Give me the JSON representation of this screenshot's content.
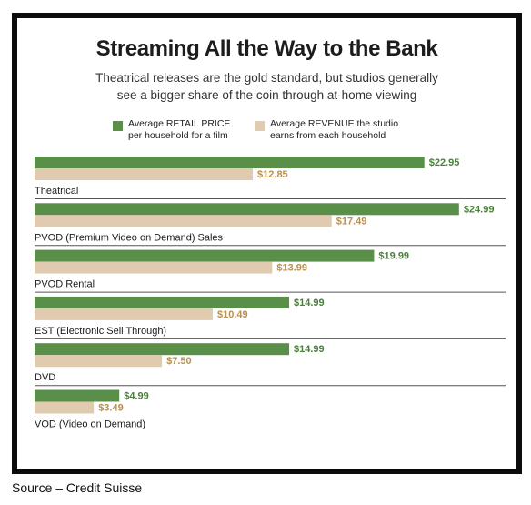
{
  "title": "Streaming All the Way to the Bank",
  "subtitle_line1": "Theatrical releases are the gold standard, but studios generally",
  "subtitle_line2": "see a bigger share of the coin through at-home viewing",
  "source": "Source – Credit Suisse",
  "colors": {
    "retail": "#5a8f4a",
    "revenue": "#e0cbb0",
    "retail_label": "#4a7f3c",
    "revenue_label": "#b8904f"
  },
  "chart_data": {
    "type": "bar",
    "orientation": "horizontal",
    "categories": [
      "Theatrical",
      "PVOD (Premium Video on Demand) Sales",
      "PVOD Rental",
      "EST (Electronic Sell Through)",
      "DVD",
      "VOD (Video on Demand)"
    ],
    "series": [
      {
        "name": "Average RETAIL PRICE\nper household for a film",
        "values": [
          22.95,
          24.99,
          19.99,
          14.99,
          14.99,
          4.99
        ],
        "labels": [
          "$22.95",
          "$24.99",
          "$19.99",
          "$14.99",
          "$14.99",
          "$4.99"
        ]
      },
      {
        "name": "Average REVENUE the studio\nearns from each household",
        "values": [
          12.85,
          17.49,
          13.99,
          10.49,
          7.5,
          3.49
        ],
        "labels": [
          "$12.85",
          "$17.49",
          "$13.99",
          "$10.49",
          "$7.50",
          "$3.49"
        ]
      }
    ],
    "xlim": [
      0,
      25
    ],
    "grid": false,
    "legend_position": "top"
  }
}
